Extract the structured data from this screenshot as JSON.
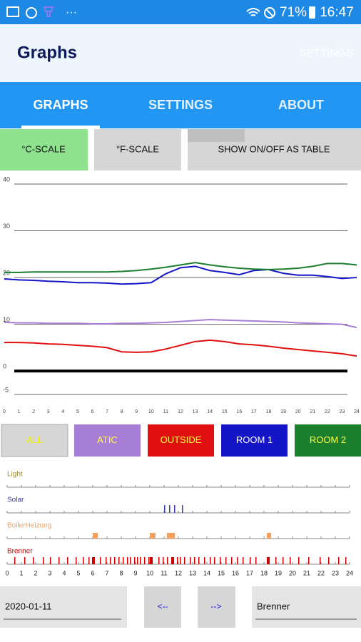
{
  "status_bar": {
    "battery": "71%",
    "time": "16:47"
  },
  "app_bar": {
    "title": "Graphs",
    "action": "SETTINGS"
  },
  "tabs": [
    "GRAPHS",
    "SETTINGS",
    "ABOUT"
  ],
  "scale_buttons": [
    "°C-SCALE",
    "°F-SCALE",
    "SHOW ON/OFF AS TABLE"
  ],
  "all_button": "ALL",
  "chart_data": [
    {
      "type": "line",
      "x": [
        0,
        1,
        2,
        3,
        4,
        5,
        6,
        7,
        8,
        9,
        10,
        11,
        12,
        13,
        14,
        15,
        16,
        17,
        18,
        19,
        20,
        21,
        22,
        23,
        24
      ],
      "xlim": [
        0,
        24
      ],
      "xticks": [
        0,
        1,
        2,
        3,
        4,
        5,
        6,
        7,
        8,
        9,
        10,
        11,
        12,
        13,
        14,
        15,
        16,
        17,
        18,
        19,
        20,
        21,
        22,
        23,
        24
      ],
      "ylim": [
        -7,
        40
      ],
      "yticks": [
        -5,
        0,
        10,
        20,
        30,
        40
      ],
      "grid": true,
      "series": [
        {
          "name": "ATIC",
          "color": "#a77ed6",
          "values": [
            10.4,
            10.3,
            10.3,
            10.2,
            10.2,
            10.2,
            10.1,
            10.1,
            10.2,
            10.2,
            10.3,
            10.4,
            10.6,
            10.8,
            11,
            10.9,
            10.8,
            10.7,
            10.6,
            10.5,
            10.3,
            10.2,
            10.1,
            10,
            9.3
          ]
        },
        {
          "name": "OUTSIDE",
          "color": "#e01010",
          "values": [
            6.1,
            6.1,
            6,
            5.8,
            5.7,
            5.5,
            5.3,
            5,
            4.1,
            4,
            4.1,
            4.7,
            5.5,
            6.3,
            6.6,
            6.3,
            5.8,
            5.6,
            5.3,
            4.9,
            4.6,
            4.3,
            4,
            3.7,
            3.2
          ]
        },
        {
          "name": "ROOM 1",
          "color": "#1515c8",
          "values": [
            19.7,
            19.5,
            19.4,
            19.2,
            19.1,
            18.9,
            18.9,
            18.8,
            18.6,
            18.7,
            18.9,
            20.8,
            22.1,
            22.4,
            21.5,
            21.1,
            20.6,
            21.5,
            21.7,
            20.9,
            20.5,
            20.5,
            20.2,
            19.8,
            20
          ]
        },
        {
          "name": "ROOM 2",
          "color": "#1b7f2e",
          "values": [
            21.1,
            21.1,
            21.2,
            21.2,
            21.2,
            21.2,
            21.2,
            21.2,
            21.3,
            21.5,
            21.8,
            22.2,
            22.7,
            23.2,
            22.7,
            22.3,
            22,
            21.8,
            21.7,
            21.8,
            22,
            22.4,
            23,
            23,
            22.7
          ]
        }
      ]
    },
    {
      "type": "timeline",
      "xlim": [
        0,
        24
      ],
      "xticks": [
        0,
        1,
        2,
        3,
        4,
        5,
        6,
        7,
        8,
        9,
        10,
        11,
        12,
        13,
        14,
        15,
        16,
        17,
        18,
        19,
        20,
        21,
        22,
        23,
        24
      ],
      "rows": [
        {
          "name": "Light",
          "color": "#9a8a30",
          "events": []
        },
        {
          "name": "Solar",
          "color": "#3a3aa8",
          "events": [
            [
              11,
              11.04
            ],
            [
              11.35,
              11.39
            ],
            [
              11.7,
              11.74
            ],
            [
              12.25,
              12.29
            ]
          ]
        },
        {
          "name": "BoilerHeizung",
          "color": "#f0a060",
          "events": [
            [
              6,
              6.35
            ],
            [
              10,
              10.4
            ],
            [
              11.2,
              11.75
            ],
            [
              18.2,
              18.5
            ]
          ]
        },
        {
          "name": "Brenner",
          "color": "#d00000",
          "events": [
            [
              0.5,
              0.55
            ],
            [
              1.2,
              1.25
            ],
            [
              1.8,
              1.85
            ],
            [
              2.5,
              2.55
            ],
            [
              3,
              3.05
            ],
            [
              3.6,
              3.65
            ],
            [
              4.2,
              4.25
            ],
            [
              4.8,
              4.85
            ],
            [
              5.3,
              5.35
            ],
            [
              5.7,
              5.75
            ],
            [
              5.95,
              6.15
            ],
            [
              6.5,
              6.55
            ],
            [
              6.9,
              6.95
            ],
            [
              7.2,
              7.25
            ],
            [
              7.5,
              7.55
            ],
            [
              7.8,
              7.85
            ],
            [
              8.1,
              8.15
            ],
            [
              8.4,
              8.45
            ],
            [
              8.6,
              8.65
            ],
            [
              8.9,
              8.95
            ],
            [
              9.1,
              9.15
            ],
            [
              9.3,
              9.35
            ],
            [
              9.6,
              9.65
            ],
            [
              9.9,
              9.95
            ],
            [
              10,
              10.2
            ],
            [
              10.6,
              10.65
            ],
            [
              10.9,
              10.95
            ],
            [
              11.2,
              11.25
            ],
            [
              11.5,
              11.7
            ],
            [
              11.9,
              11.95
            ],
            [
              12.1,
              12.15
            ],
            [
              12.4,
              12.45
            ],
            [
              12.8,
              12.85
            ],
            [
              13.1,
              13.15
            ],
            [
              13.4,
              13.45
            ],
            [
              13.8,
              13.85
            ],
            [
              14.2,
              14.25
            ],
            [
              14.5,
              14.55
            ],
            [
              14.9,
              14.95
            ],
            [
              15.3,
              15.35
            ],
            [
              15.7,
              15.75
            ],
            [
              16.1,
              16.15
            ],
            [
              16.5,
              16.55
            ],
            [
              17,
              17.05
            ],
            [
              17.4,
              17.45
            ],
            [
              18.2,
              18.4
            ],
            [
              18.8,
              18.85
            ],
            [
              19.3,
              19.35
            ],
            [
              19.8,
              19.85
            ],
            [
              20.4,
              20.45
            ],
            [
              21.1,
              21.15
            ],
            [
              21.9,
              21.95
            ],
            [
              22.5,
              22.55
            ],
            [
              23.2,
              23.25
            ],
            [
              23.7,
              23.75
            ]
          ]
        }
      ]
    }
  ],
  "footer": {
    "date": "2020-01-11",
    "prev": "<--",
    "next": "-->",
    "selector": "Brenner"
  }
}
